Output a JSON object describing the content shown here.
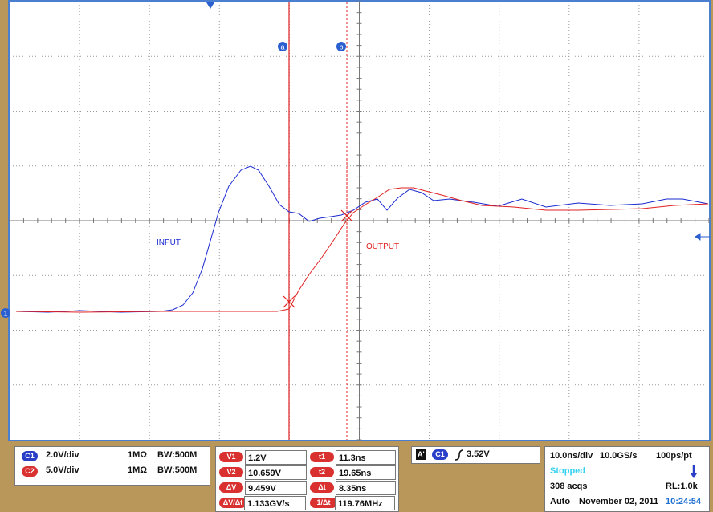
{
  "screen": {
    "cursor_labels": [
      "a",
      "b"
    ],
    "trace_labels": [
      "INPUT",
      "OUTPUT"
    ],
    "channel_marker": "1"
  },
  "channels": [
    {
      "badge": "C1",
      "scale": "2.0V/div",
      "impedance": "1MΩ",
      "bandwidth": "BW:500M"
    },
    {
      "badge": "C2",
      "scale": "5.0V/div",
      "impedance": "1MΩ",
      "bandwidth": "BW:500M"
    }
  ],
  "cursors": [
    [
      {
        "label": "V1",
        "value": "1.2V"
      },
      {
        "label": "t1",
        "value": "11.3ns"
      }
    ],
    [
      {
        "label": "V2",
        "value": "10.659V"
      },
      {
        "label": "t2",
        "value": "19.65ns"
      }
    ],
    [
      {
        "label": "ΔV",
        "value": "9.459V"
      },
      {
        "label": "Δt",
        "value": "8.35ns"
      }
    ],
    [
      {
        "label": "ΔV/Δt",
        "value": "1.133GV/s"
      },
      {
        "label": "1/Δt",
        "value": "119.76MHz"
      }
    ]
  ],
  "trigger": {
    "tag": "A'",
    "channel": "C1",
    "level": "3.52V"
  },
  "acquisition": {
    "timebase": "10.0ns/div",
    "sample_rate": "10.0GS/s",
    "resolution": "100ps/pt",
    "status": "Stopped",
    "acqs": "308 acqs",
    "record_length": "RL:1.0k",
    "mode": "Auto",
    "date": "November 02, 2011",
    "time": "10:24:54"
  }
}
